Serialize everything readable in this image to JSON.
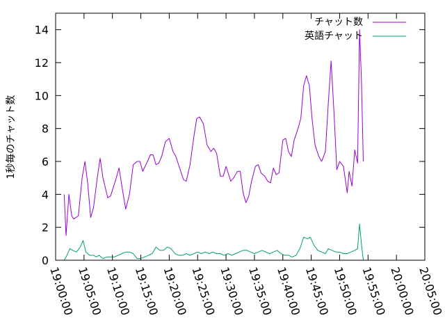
{
  "chart_data": {
    "type": "line",
    "xlabel": "",
    "ylabel": "1秒毎のチャット数",
    "ylim": [
      0,
      15
    ],
    "xlim": [
      "19:00:00",
      "20:05:00"
    ],
    "grid": false,
    "legend_position": "top-right",
    "y_ticks": [
      "0",
      "2",
      "4",
      "6",
      "8",
      "10",
      "12",
      "14"
    ],
    "x_ticks": [
      "19:00:00",
      "19:05:00",
      "19:10:00",
      "19:15:00",
      "19:20:00",
      "19:25:00",
      "19:30:00",
      "19:35:00",
      "19:40:00",
      "19:45:00",
      "19:50:00",
      "19:55:00",
      "20:00:00",
      "20:05:00"
    ],
    "series": [
      {
        "name": "チャット数",
        "color": "#9400d3",
        "points": [
          [
            "19:01:30",
            4.0
          ],
          [
            "19:01:50",
            1.5
          ],
          [
            "19:02:20",
            4.0
          ],
          [
            "19:02:50",
            2.7
          ],
          [
            "19:03:10",
            2.5
          ],
          [
            "19:04:00",
            2.7
          ],
          [
            "19:04:40",
            5.0
          ],
          [
            "19:05:10",
            6.0
          ],
          [
            "19:05:40",
            4.6
          ],
          [
            "19:06:10",
            2.6
          ],
          [
            "19:06:40",
            3.2
          ],
          [
            "19:07:20",
            5.0
          ],
          [
            "19:07:50",
            6.2
          ],
          [
            "19:08:20",
            5.0
          ],
          [
            "19:09:10",
            3.8
          ],
          [
            "19:09:40",
            3.9
          ],
          [
            "19:10:30",
            4.8
          ],
          [
            "19:11:10",
            5.6
          ],
          [
            "19:11:40",
            4.5
          ],
          [
            "19:12:20",
            3.1
          ],
          [
            "19:13:00",
            4.0
          ],
          [
            "19:13:40",
            5.8
          ],
          [
            "19:14:20",
            6.0
          ],
          [
            "19:14:50",
            6.0
          ],
          [
            "19:15:20",
            5.4
          ],
          [
            "19:16:10",
            6.0
          ],
          [
            "19:16:40",
            6.4
          ],
          [
            "19:17:10",
            6.4
          ],
          [
            "19:17:40",
            5.8
          ],
          [
            "19:18:10",
            5.9
          ],
          [
            "19:18:40",
            6.3
          ],
          [
            "19:19:20",
            7.2
          ],
          [
            "19:20:00",
            7.4
          ],
          [
            "19:20:40",
            6.6
          ],
          [
            "19:21:10",
            6.3
          ],
          [
            "19:21:50",
            5.6
          ],
          [
            "19:22:30",
            4.9
          ],
          [
            "19:23:00",
            4.8
          ],
          [
            "19:23:40",
            5.8
          ],
          [
            "19:24:20",
            7.5
          ],
          [
            "19:24:50",
            8.6
          ],
          [
            "19:25:20",
            8.7
          ],
          [
            "19:26:00",
            8.3
          ],
          [
            "19:26:40",
            7.0
          ],
          [
            "19:27:20",
            6.6
          ],
          [
            "19:27:50",
            6.8
          ],
          [
            "19:28:20",
            6.5
          ],
          [
            "19:29:00",
            5.1
          ],
          [
            "19:29:30",
            5.1
          ],
          [
            "19:30:00",
            5.7
          ],
          [
            "19:30:50",
            4.8
          ],
          [
            "19:31:20",
            5.0
          ],
          [
            "19:32:00",
            5.4
          ],
          [
            "19:32:30",
            5.4
          ],
          [
            "19:33:00",
            4.1
          ],
          [
            "19:33:30",
            3.5
          ],
          [
            "19:34:00",
            3.9
          ],
          [
            "19:34:30",
            4.8
          ],
          [
            "19:35:10",
            5.7
          ],
          [
            "19:35:40",
            5.8
          ],
          [
            "19:36:10",
            5.3
          ],
          [
            "19:36:50",
            5.1
          ],
          [
            "19:37:20",
            4.8
          ],
          [
            "19:37:50",
            4.7
          ],
          [
            "19:38:20",
            5.6
          ],
          [
            "19:38:50",
            5.2
          ],
          [
            "19:39:20",
            5.3
          ],
          [
            "19:40:00",
            7.3
          ],
          [
            "19:40:30",
            7.4
          ],
          [
            "19:41:00",
            6.6
          ],
          [
            "19:41:30",
            6.3
          ],
          [
            "19:42:00",
            7.3
          ],
          [
            "19:42:40",
            8.0
          ],
          [
            "19:43:10",
            8.6
          ],
          [
            "19:43:40",
            10.6
          ],
          [
            "19:44:10",
            11.2
          ],
          [
            "19:44:40",
            10.6
          ],
          [
            "19:45:10",
            8.5
          ],
          [
            "19:45:40",
            7.0
          ],
          [
            "19:46:20",
            6.3
          ],
          [
            "19:46:50",
            6.0
          ],
          [
            "19:47:30",
            6.6
          ],
          [
            "19:48:00",
            9.5
          ],
          [
            "19:48:30",
            12.1
          ],
          [
            "19:49:00",
            9.0
          ],
          [
            "19:49:30",
            5.5
          ],
          [
            "19:50:00",
            6.0
          ],
          [
            "19:50:40",
            5.7
          ],
          [
            "19:51:20",
            4.1
          ],
          [
            "19:51:40",
            5.4
          ],
          [
            "19:52:10",
            4.5
          ],
          [
            "19:52:40",
            6.7
          ],
          [
            "19:53:10",
            5.9
          ],
          [
            "19:53:30",
            14.0
          ],
          [
            "19:53:50",
            11.0
          ],
          [
            "19:54:10",
            6.0
          ]
        ]
      },
      {
        "name": "英語チャット",
        "color": "#009e73",
        "points": [
          [
            "19:01:30",
            0.0
          ],
          [
            "19:02:00",
            0.3
          ],
          [
            "19:02:30",
            0.7
          ],
          [
            "19:03:00",
            0.6
          ],
          [
            "19:03:40",
            0.5
          ],
          [
            "19:04:20",
            0.8
          ],
          [
            "19:04:50",
            1.2
          ],
          [
            "19:05:20",
            0.5
          ],
          [
            "19:06:00",
            0.3
          ],
          [
            "19:06:40",
            0.3
          ],
          [
            "19:07:10",
            0.2
          ],
          [
            "19:07:40",
            0.3
          ],
          [
            "19:08:20",
            0.1
          ],
          [
            "19:09:00",
            0.2
          ],
          [
            "19:09:40",
            0.2
          ],
          [
            "19:10:20",
            0.2
          ],
          [
            "19:11:00",
            0.3
          ],
          [
            "19:11:40",
            0.4
          ],
          [
            "19:12:20",
            0.5
          ],
          [
            "19:13:00",
            0.5
          ],
          [
            "19:13:40",
            0.4
          ],
          [
            "19:14:20",
            0.1
          ],
          [
            "19:15:00",
            0.1
          ],
          [
            "19:15:40",
            0.2
          ],
          [
            "19:16:20",
            0.3
          ],
          [
            "19:17:00",
            0.4
          ],
          [
            "19:17:40",
            0.8
          ],
          [
            "19:18:20",
            0.6
          ],
          [
            "19:19:00",
            0.6
          ],
          [
            "19:19:40",
            0.8
          ],
          [
            "19:20:20",
            0.7
          ],
          [
            "19:21:00",
            0.4
          ],
          [
            "19:21:40",
            0.3
          ],
          [
            "19:22:20",
            0.3
          ],
          [
            "19:23:00",
            0.4
          ],
          [
            "19:23:40",
            0.3
          ],
          [
            "19:24:20",
            0.4
          ],
          [
            "19:25:00",
            0.5
          ],
          [
            "19:25:40",
            0.4
          ],
          [
            "19:26:20",
            0.5
          ],
          [
            "19:27:00",
            0.4
          ],
          [
            "19:27:40",
            0.5
          ],
          [
            "19:28:20",
            0.4
          ],
          [
            "19:29:00",
            0.4
          ],
          [
            "19:29:40",
            0.3
          ],
          [
            "19:30:20",
            0.4
          ],
          [
            "19:31:00",
            0.3
          ],
          [
            "19:31:40",
            0.4
          ],
          [
            "19:32:20",
            0.5
          ],
          [
            "19:33:00",
            0.6
          ],
          [
            "19:33:40",
            0.6
          ],
          [
            "19:34:20",
            0.5
          ],
          [
            "19:35:00",
            0.4
          ],
          [
            "19:35:40",
            0.5
          ],
          [
            "19:36:20",
            0.6
          ],
          [
            "19:37:00",
            0.5
          ],
          [
            "19:37:40",
            0.4
          ],
          [
            "19:38:20",
            0.5
          ],
          [
            "19:39:00",
            0.6
          ],
          [
            "19:39:40",
            0.4
          ],
          [
            "19:40:20",
            0.3
          ],
          [
            "19:41:00",
            0.3
          ],
          [
            "19:41:40",
            0.2
          ],
          [
            "19:42:20",
            0.3
          ],
          [
            "19:43:00",
            0.7
          ],
          [
            "19:43:40",
            1.4
          ],
          [
            "19:44:20",
            1.3
          ],
          [
            "19:44:50",
            1.4
          ],
          [
            "19:45:30",
            0.9
          ],
          [
            "19:46:10",
            0.6
          ],
          [
            "19:46:50",
            0.5
          ],
          [
            "19:47:30",
            0.4
          ],
          [
            "19:48:00",
            0.7
          ],
          [
            "19:48:40",
            0.6
          ],
          [
            "19:49:20",
            0.5
          ],
          [
            "19:50:00",
            0.5
          ],
          [
            "19:50:40",
            0.4
          ],
          [
            "19:51:20",
            0.4
          ],
          [
            "19:52:00",
            0.5
          ],
          [
            "19:52:40",
            0.6
          ],
          [
            "19:53:10",
            0.7
          ],
          [
            "19:53:30",
            2.2
          ],
          [
            "19:53:50",
            1.0
          ],
          [
            "19:54:10",
            0.0
          ]
        ]
      }
    ]
  }
}
